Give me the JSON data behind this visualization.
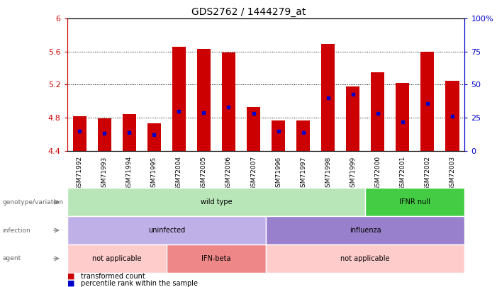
{
  "title": "GDS2762 / 1444279_at",
  "samples": [
    "GSM71992",
    "GSM71993",
    "GSM71994",
    "GSM71995",
    "GSM72004",
    "GSM72005",
    "GSM72006",
    "GSM72007",
    "GSM71996",
    "GSM71997",
    "GSM71998",
    "GSM71999",
    "GSM72000",
    "GSM72001",
    "GSM72002",
    "GSM72003"
  ],
  "bar_values": [
    4.82,
    4.79,
    4.84,
    4.73,
    5.66,
    5.63,
    5.59,
    4.93,
    4.77,
    4.77,
    5.69,
    5.18,
    5.35,
    5.22,
    5.6,
    5.25
  ],
  "percentile_values": [
    15,
    13,
    14,
    12,
    30,
    29,
    33,
    28,
    15,
    14,
    40,
    43,
    28,
    22,
    36,
    26
  ],
  "ymin": 4.4,
  "ymax": 6.0,
  "bar_color": "#cc0000",
  "marker_color": "#0000cc",
  "annotation_rows": [
    {
      "label": "genotype/variation",
      "segments": [
        {
          "text": "wild type",
          "start": 0,
          "end": 12,
          "color": "#b8e6b8"
        },
        {
          "text": "IFNR null",
          "start": 12,
          "end": 16,
          "color": "#44cc44"
        }
      ]
    },
    {
      "label": "infection",
      "segments": [
        {
          "text": "uninfected",
          "start": 0,
          "end": 8,
          "color": "#c0b0e8"
        },
        {
          "text": "influenza",
          "start": 8,
          "end": 16,
          "color": "#9980cc"
        }
      ]
    },
    {
      "label": "agent",
      "segments": [
        {
          "text": "not applicable",
          "start": 0,
          "end": 4,
          "color": "#ffcccc"
        },
        {
          "text": "IFN-beta",
          "start": 4,
          "end": 8,
          "color": "#ee8888"
        },
        {
          "text": "not applicable",
          "start": 8,
          "end": 16,
          "color": "#ffcccc"
        }
      ]
    }
  ],
  "legend": [
    {
      "color": "#cc0000",
      "label": "transformed count"
    },
    {
      "color": "#0000cc",
      "label": "percentile rank within the sample"
    }
  ]
}
